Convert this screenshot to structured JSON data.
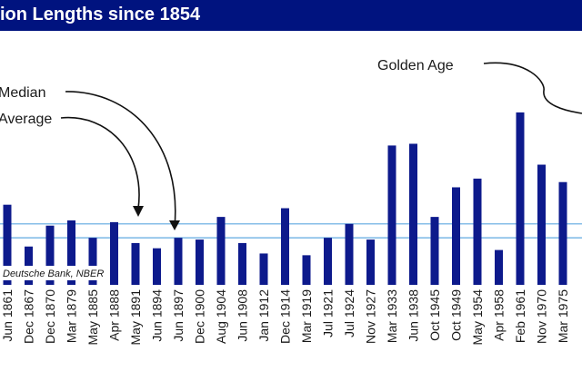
{
  "chart_data": {
    "type": "bar",
    "title": "ion Lengths since 1854",
    "categories": [
      "Jun 1861",
      "Dec 1867",
      "Dec 1870",
      "Mar 1879",
      "May 1885",
      "Apr 1888",
      "May 1891",
      "Jun 1894",
      "Jun 1897",
      "Dec 1900",
      "Aug 1904",
      "Jun 1908",
      "Jan 1912",
      "Dec 1914",
      "Mar 1919",
      "Jul 1921",
      "Jul 1924",
      "Nov 1927",
      "Mar 1933",
      "Jun 1938",
      "Oct 1945",
      "Oct 1949",
      "May 1954",
      "Apr 1958",
      "Feb 1961",
      "Nov 1970",
      "Mar 1975"
    ],
    "values": [
      46,
      22,
      34,
      37,
      27,
      36,
      24,
      21,
      27,
      26,
      39,
      24,
      18,
      44,
      17,
      27,
      35,
      26,
      80,
      81,
      39,
      56,
      61,
      20,
      99,
      69,
      59
    ],
    "reference_lines": [
      {
        "label": "Median",
        "value": 27
      },
      {
        "label": "Average",
        "value": 35
      }
    ],
    "annotations": {
      "median": "Median",
      "average": "Average",
      "golden_age": "Golden Age"
    },
    "source": "Deutsche Bank, NBER",
    "bar_color": "#0d1a8c",
    "line_color": "#5fa8e0"
  }
}
